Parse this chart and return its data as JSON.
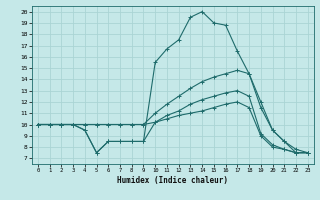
{
  "title": "",
  "xlabel": "Humidex (Indice chaleur)",
  "bg_color": "#c5e8e8",
  "grid_color": "#aad4d4",
  "line_color": "#1e6b6b",
  "xlim": [
    -0.5,
    23.5
  ],
  "ylim": [
    6.5,
    20.5
  ],
  "xticks": [
    0,
    1,
    2,
    3,
    4,
    5,
    6,
    7,
    8,
    9,
    10,
    11,
    12,
    13,
    14,
    15,
    16,
    17,
    18,
    19,
    20,
    21,
    22,
    23
  ],
  "yticks": [
    7,
    8,
    9,
    10,
    11,
    12,
    13,
    14,
    15,
    16,
    17,
    18,
    19,
    20
  ],
  "x": [
    0,
    1,
    2,
    3,
    4,
    5,
    6,
    7,
    8,
    9,
    10,
    11,
    12,
    13,
    14,
    15,
    16,
    17,
    18,
    19,
    20,
    21,
    22,
    23
  ],
  "y_peak": [
    10,
    10,
    10,
    10,
    9.5,
    7.5,
    8.5,
    8.5,
    8.5,
    8.5,
    15.5,
    16.7,
    17.5,
    19.5,
    20.0,
    19.0,
    18.8,
    16.5,
    14.5,
    12.0,
    9.5,
    8.5,
    7.5,
    7.5
  ],
  "y_upper": [
    10,
    10,
    10,
    10,
    10,
    10,
    10,
    10,
    10,
    10,
    11.0,
    11.8,
    12.5,
    13.2,
    13.8,
    14.2,
    14.5,
    14.8,
    14.5,
    11.5,
    9.5,
    8.5,
    7.8,
    7.5
  ],
  "y_lower": [
    10,
    10,
    10,
    10,
    10,
    10,
    10,
    10,
    10,
    10,
    10.2,
    10.8,
    11.2,
    11.8,
    12.2,
    12.5,
    12.8,
    13.0,
    12.5,
    9.2,
    8.2,
    7.8,
    7.5,
    7.5
  ],
  "y_bot": [
    10,
    10,
    10,
    10,
    9.5,
    7.5,
    8.5,
    8.5,
    8.5,
    8.5,
    10.2,
    10.5,
    10.8,
    11.0,
    11.2,
    11.5,
    11.8,
    12.0,
    11.5,
    9.0,
    8.0,
    7.8,
    7.5,
    7.5
  ]
}
